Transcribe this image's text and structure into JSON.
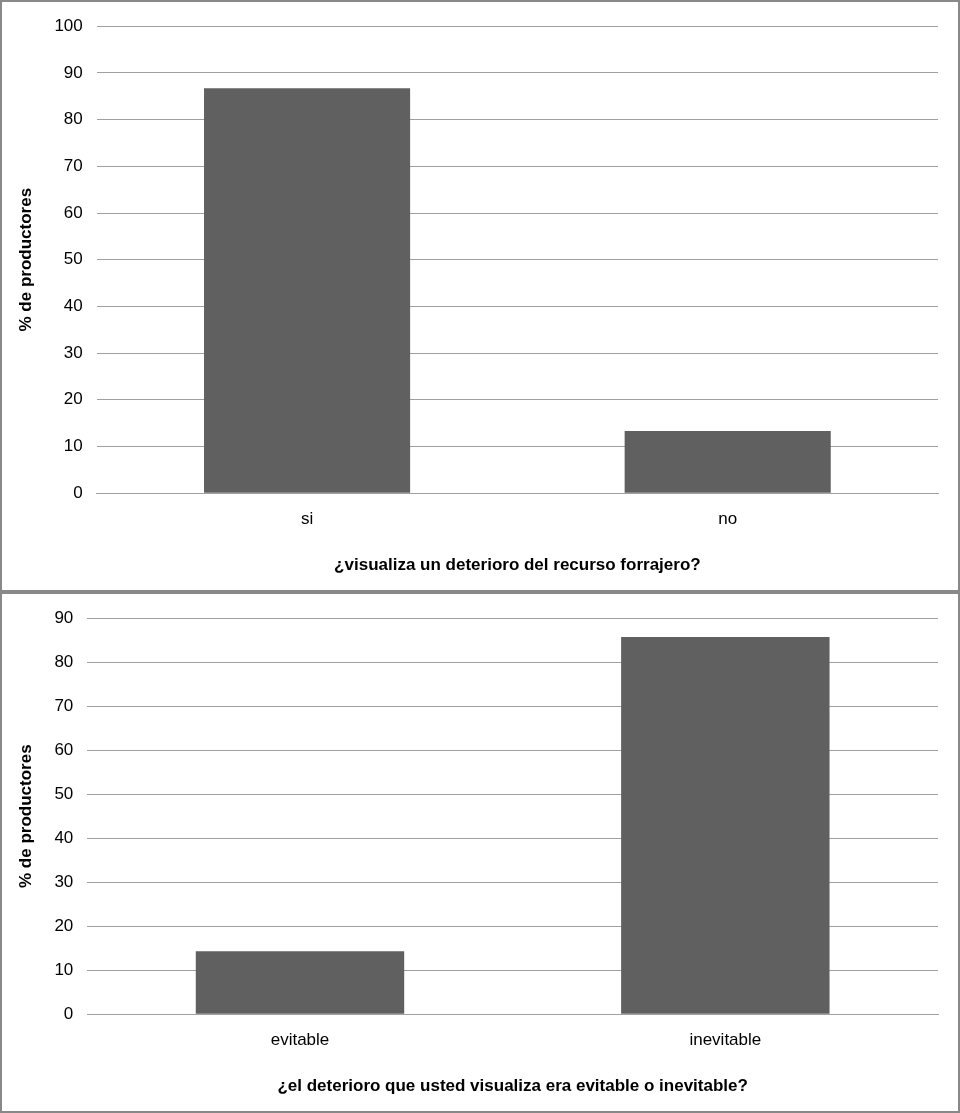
{
  "chart_data": [
    {
      "type": "bar",
      "categories": [
        "si",
        "no"
      ],
      "values": [
        86.7,
        13.3
      ],
      "color": "#606060",
      "xlabel": "¿visualiza un deterioro del recurso forrajero?",
      "ylabel": "% de productores",
      "ylim": [
        0,
        100
      ],
      "yticks": [
        0,
        10,
        20,
        30,
        40,
        50,
        60,
        70,
        80,
        90,
        100
      ],
      "grid": "y"
    },
    {
      "type": "bar",
      "categories": [
        "evitable",
        "inevitable"
      ],
      "values": [
        14.3,
        85.7
      ],
      "color": "#606060",
      "xlabel": "¿el deterioro que usted visualiza era evitable o inevitable?",
      "ylabel": "% de productores",
      "ylim": [
        0,
        90
      ],
      "yticks": [
        0,
        10,
        20,
        30,
        40,
        50,
        60,
        70,
        80,
        90
      ],
      "grid": "y"
    }
  ]
}
